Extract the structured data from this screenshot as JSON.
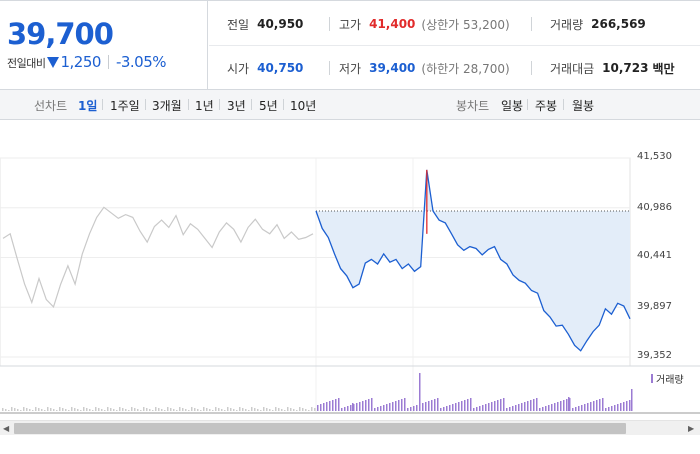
{
  "quote": {
    "price": "39,700",
    "change_label": "전일대비",
    "change_value": "1,250",
    "change_rate": "-3.05%"
  },
  "summary": {
    "prev_close": {
      "label": "전일",
      "value": "40,950"
    },
    "high": {
      "label": "고가",
      "value": "41,400",
      "sub": "(상한가 53,200)"
    },
    "volume": {
      "label": "거래량",
      "value": "266,569"
    },
    "open": {
      "label": "시가",
      "value": "40,750"
    },
    "low": {
      "label": "저가",
      "value": "39,400",
      "sub": "(하한가 28,700)"
    },
    "amount": {
      "label": "거래대금",
      "value": "10,723",
      "unit": "백만"
    }
  },
  "toolbar": {
    "line_label": "선차트",
    "periods": [
      "1일",
      "1주일",
      "3개월",
      "1년",
      "3년",
      "5년",
      "10년"
    ],
    "active_period": "1일",
    "candle_label": "봉차트",
    "candles": [
      "일봉",
      "주봉",
      "월봉"
    ]
  },
  "chart": {
    "y_ticks": [
      "41,530",
      "40,986",
      "40,441",
      "39,897",
      "39,352"
    ],
    "prev_close_line": 40950,
    "volume_legend": "거래량",
    "colors": {
      "today_line": "#1c5fd1",
      "prev_day_line": "#c9c9c9",
      "fill": "#e3edf9",
      "spike": "#e12b2b",
      "volume": "#9b7bd3"
    }
  },
  "chart_data": {
    "type": "line",
    "ylim": [
      39352,
      41530
    ],
    "series": [
      {
        "values": [
          40650,
          40700,
          40420,
          40150,
          39950,
          40210,
          39980,
          39900,
          40150,
          40350,
          40150,
          40480,
          40700,
          40880,
          40990,
          40930,
          40870,
          40910,
          40880,
          40730,
          40610,
          40780,
          40850,
          40770,
          40900,
          40690,
          40810,
          40750,
          40650,
          40550,
          40720,
          40820,
          40750,
          40610,
          40770,
          40860,
          40750,
          40700,
          40800,
          40650,
          40720,
          40640,
          40660,
          40700
        ]
      },
      {
        "values": [
          40950,
          40760,
          40660,
          40480,
          40320,
          40240,
          40110,
          40150,
          40380,
          40420,
          40370,
          40480,
          40390,
          40420,
          40320,
          40370,
          40290,
          40340,
          41400,
          40950,
          40850,
          40820,
          40700,
          40580,
          40520,
          40560,
          40540,
          40470,
          40530,
          40560,
          40420,
          40370,
          40250,
          40190,
          40160,
          40080,
          40050,
          39860,
          39790,
          39690,
          39700,
          39600,
          39480,
          39420,
          39530,
          39630,
          39700,
          39880,
          39820,
          39940,
          39910,
          39770
        ]
      }
    ]
  }
}
